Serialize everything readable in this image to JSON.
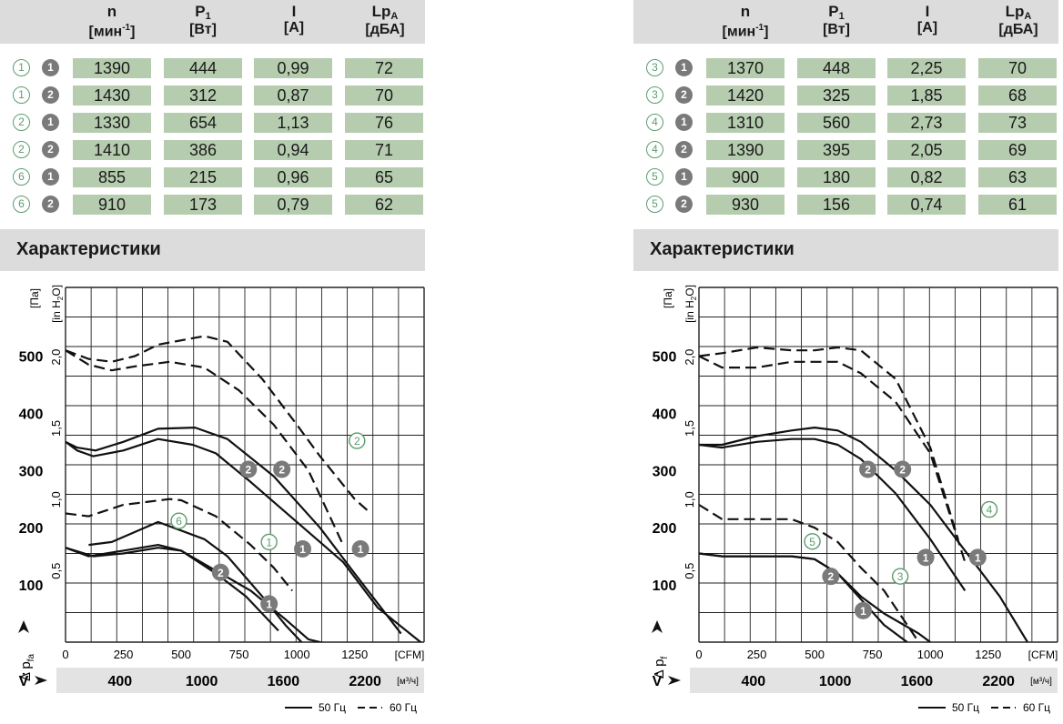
{
  "panels": [
    {
      "header": {
        "n": "n",
        "n_unit": "[мин",
        "n_unit_sup": "-1",
        "n_unit_end": "]",
        "p": "P",
        "p_sub": "1",
        "p_unit": "[Вт]",
        "i": "I",
        "i_unit": "[А]",
        "lp": "Lp",
        "lp_sub": "A",
        "lp_unit": "[дБА]"
      },
      "rows": [
        {
          "curve": "1",
          "point": "1",
          "n": "1390",
          "p": "444",
          "i": "0,99",
          "lp": "72"
        },
        {
          "curve": "1",
          "point": "2",
          "n": "1430",
          "p": "312",
          "i": "0,87",
          "lp": "70"
        },
        {
          "curve": "2",
          "point": "1",
          "n": "1330",
          "p": "654",
          "i": "1,13",
          "lp": "76"
        },
        {
          "curve": "2",
          "point": "2",
          "n": "1410",
          "p": "386",
          "i": "0,94",
          "lp": "71"
        },
        {
          "curve": "6",
          "point": "1",
          "n": "855",
          "p": "215",
          "i": "0,96",
          "lp": "65"
        },
        {
          "curve": "6",
          "point": "2",
          "n": "910",
          "p": "173",
          "i": "0,79",
          "lp": "62"
        }
      ],
      "section_title": "Характеристики"
    },
    {
      "header": {
        "n": "n",
        "n_unit": "[мин",
        "n_unit_sup": "-1",
        "n_unit_end": "]",
        "p": "P",
        "p_sub": "1",
        "p_unit": "[Вт]",
        "i": "I",
        "i_unit": "[А]",
        "lp": "Lp",
        "lp_sub": "A",
        "lp_unit": "[дБА]"
      },
      "rows": [
        {
          "curve": "3",
          "point": "1",
          "n": "1370",
          "p": "448",
          "i": "2,25",
          "lp": "70"
        },
        {
          "curve": "3",
          "point": "2",
          "n": "1420",
          "p": "325",
          "i": "1,85",
          "lp": "68"
        },
        {
          "curve": "4",
          "point": "1",
          "n": "1310",
          "p": "560",
          "i": "2,73",
          "lp": "73"
        },
        {
          "curve": "4",
          "point": "2",
          "n": "1390",
          "p": "395",
          "i": "2,05",
          "lp": "69"
        },
        {
          "curve": "5",
          "point": "1",
          "n": "900",
          "p": "180",
          "i": "0,82",
          "lp": "63"
        },
        {
          "curve": "5",
          "point": "2",
          "n": "930",
          "p": "156",
          "i": "0,74",
          "lp": "61"
        }
      ],
      "section_title": "Характеристики"
    }
  ],
  "colors": {
    "accent_green": "#5a9d6e",
    "cell_bg": "#b6ccaf",
    "marker_grey": "#7a7a7a",
    "header_bg": "#dcdcdc"
  },
  "chart_data": [
    {
      "type": "line",
      "ylabel_pa": "[Па]",
      "ylabel_in": "[in H",
      "ylabel_in_sub": "2",
      "ylabel_in_end": "O]",
      "y_axis_symbol": "Δ p",
      "y_axis_sub": "fa",
      "x_axis_symbol": "V̇",
      "x_unit_cfm": "[CFM]",
      "x_unit_m3": "[м³/ч]",
      "xlim_cfm": [
        0,
        1550
      ],
      "ylim_pa": [
        0,
        620
      ],
      "cfm_ticks": [
        "0",
        "250",
        "500",
        "750",
        "1000",
        "1250"
      ],
      "m3h_ticks": [
        "400",
        "1000",
        "1600",
        "2200"
      ],
      "pa_ticks": [
        "100",
        "200",
        "300",
        "400",
        "500"
      ],
      "inh2o_ticks": [
        "0,5",
        "1,0",
        "1,5",
        "2,0"
      ],
      "legend": {
        "solid": "50 Гц",
        "dashed": "60 Гц"
      },
      "grid": true,
      "series": [
        {
          "dashed": false,
          "x": [
            0,
            50,
            120,
            250,
            400,
            550,
            650,
            800,
            1000,
            1200,
            1350,
            1550
          ],
          "y": [
            350,
            335,
            325,
            335,
            355,
            345,
            330,
            280,
            210,
            140,
            60,
            -5
          ]
        },
        {
          "dashed": false,
          "x": [
            0,
            50,
            130,
            250,
            400,
            560,
            700,
            900,
            1100,
            1250,
            1450
          ],
          "y": [
            350,
            340,
            335,
            350,
            373,
            375,
            355,
            290,
            200,
            120,
            15
          ]
        },
        {
          "dashed": true,
          "x": [
            0,
            100,
            200,
            300,
            450,
            600,
            750,
            900,
            1050,
            1200
          ],
          "y": [
            510,
            485,
            475,
            482,
            490,
            480,
            440,
            380,
            300,
            170
          ]
        },
        {
          "dashed": true,
          "x": [
            0,
            100,
            200,
            300,
            400,
            600,
            700,
            850,
            1000,
            1100,
            1250,
            1320
          ],
          "y": [
            510,
            495,
            490,
            500,
            520,
            535,
            525,
            460,
            380,
            325,
            250,
            225
          ]
        },
        {
          "dashed": false,
          "x": [
            0,
            100,
            250,
            400,
            500,
            650,
            800,
            950,
            1050,
            1150
          ],
          "y": [
            165,
            150,
            160,
            170,
            160,
            125,
            90,
            40,
            5,
            -5
          ]
        },
        {
          "dashed": false,
          "x": [
            100,
            200,
            400,
            600,
            700,
            850,
            950,
            1020
          ],
          "y": [
            170,
            175,
            210,
            180,
            150,
            80,
            30,
            0
          ]
        },
        {
          "dashed": true,
          "x": [
            0,
            100,
            250,
            350,
            450,
            500,
            650,
            800,
            900,
            980
          ],
          "y": [
            225,
            220,
            240,
            245,
            250,
            248,
            220,
            170,
            130,
            90
          ]
        },
        {
          "dashed": false,
          "x": [
            0,
            120,
            250,
            400,
            500,
            650,
            780,
            920
          ],
          "y": [
            165,
            150,
            155,
            165,
            160,
            120,
            80,
            20
          ]
        }
      ],
      "point_labels": [
        {
          "label": "2",
          "x": 790,
          "y": 302
        },
        {
          "label": "2",
          "x": 935,
          "y": 302
        },
        {
          "label": "1",
          "x": 1025,
          "y": 163
        },
        {
          "label": "1",
          "x": 1275,
          "y": 163
        },
        {
          "label": "2",
          "x": 670,
          "y": 122
        },
        {
          "label": "1",
          "x": 880,
          "y": 67
        }
      ],
      "curve_labels": [
        {
          "label": "2",
          "x": 1260,
          "y": 352
        },
        {
          "label": "6",
          "x": 490,
          "y": 212
        },
        {
          "label": "1",
          "x": 880,
          "y": 175
        }
      ]
    },
    {
      "type": "line",
      "ylabel_pa": "[Па]",
      "ylabel_in": "[in H",
      "ylabel_in_sub": "2",
      "ylabel_in_end": "O]",
      "y_axis_symbol": "Δ p",
      "y_axis_sub": "f",
      "x_axis_symbol": "V̇",
      "x_unit_cfm": "[CFM]",
      "x_unit_m3": "[м³/ч]",
      "xlim_cfm": [
        0,
        1550
      ],
      "ylim_pa": [
        0,
        620
      ],
      "cfm_ticks": [
        "0",
        "250",
        "500",
        "750",
        "1000",
        "1250"
      ],
      "m3h_ticks": [
        "400",
        "1000",
        "1600",
        "2200"
      ],
      "pa_ticks": [
        "100",
        "200",
        "300",
        "400",
        "500"
      ],
      "inh2o_ticks": [
        "0,5",
        "1,0",
        "1,5",
        "2,0"
      ],
      "legend": {
        "solid": "50 Гц",
        "dashed": "60 Гц"
      },
      "grid": true,
      "series": [
        {
          "dashed": false,
          "x": [
            0,
            100,
            250,
            400,
            500,
            600,
            700,
            850,
            1000,
            1150
          ],
          "y": [
            345,
            340,
            350,
            355,
            355,
            345,
            320,
            260,
            180,
            90
          ]
        },
        {
          "dashed": false,
          "x": [
            0,
            100,
            250,
            400,
            500,
            600,
            700,
            850,
            1000,
            1150,
            1300,
            1420
          ],
          "y": [
            345,
            345,
            360,
            370,
            375,
            370,
            350,
            300,
            240,
            160,
            80,
            0
          ]
        },
        {
          "dashed": true,
          "x": [
            0,
            100,
            250,
            400,
            500,
            600,
            700,
            850,
            1000,
            1150
          ],
          "y": [
            500,
            480,
            480,
            490,
            490,
            490,
            470,
            420,
            330,
            140
          ]
        },
        {
          "dashed": true,
          "x": [
            0,
            100,
            250,
            400,
            500,
            600,
            700,
            850,
            1000,
            1120
          ],
          "y": [
            500,
            505,
            515,
            510,
            510,
            515,
            510,
            460,
            340,
            180
          ]
        },
        {
          "dashed": false,
          "x": [
            0,
            100,
            250,
            400,
            500,
            600,
            700,
            800,
            950,
            1000
          ],
          "y": [
            155,
            150,
            150,
            150,
            145,
            120,
            80,
            50,
            15,
            0
          ]
        },
        {
          "dashed": false,
          "x": [
            0,
            100,
            250,
            400,
            500,
            600,
            700,
            800,
            900
          ],
          "y": [
            155,
            150,
            150,
            150,
            145,
            120,
            75,
            30,
            0
          ]
        },
        {
          "dashed": true,
          "x": [
            0,
            100,
            250,
            400,
            500,
            600,
            700,
            800,
            900,
            950
          ],
          "y": [
            240,
            215,
            215,
            215,
            200,
            175,
            130,
            90,
            30,
            0
          ]
        }
      ],
      "point_labels": [
        {
          "label": "2",
          "x": 730,
          "y": 302
        },
        {
          "label": "2",
          "x": 880,
          "y": 302
        },
        {
          "label": "1",
          "x": 980,
          "y": 148
        },
        {
          "label": "1",
          "x": 1205,
          "y": 148
        },
        {
          "label": "2",
          "x": 570,
          "y": 115
        },
        {
          "label": "1",
          "x": 710,
          "y": 55
        }
      ],
      "curve_labels": [
        {
          "label": "4",
          "x": 1255,
          "y": 232
        },
        {
          "label": "5",
          "x": 490,
          "y": 176
        },
        {
          "label": "3",
          "x": 870,
          "y": 115
        }
      ]
    }
  ]
}
